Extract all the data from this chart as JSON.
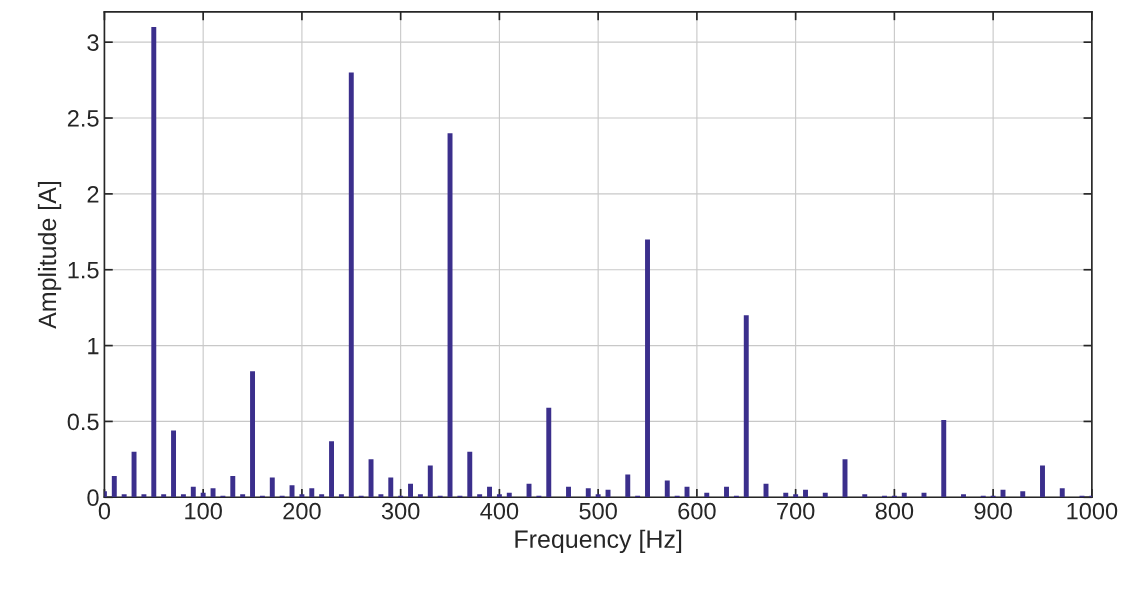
{
  "chart_data": {
    "type": "bar",
    "xlabel": "Frequency [Hz]",
    "ylabel": "Amplitude [A]",
    "color": "#3b2f8c",
    "x": [
      0,
      10,
      20,
      30,
      40,
      50,
      60,
      70,
      80,
      90,
      100,
      110,
      120,
      130,
      140,
      150,
      160,
      170,
      180,
      190,
      200,
      210,
      220,
      230,
      240,
      250,
      260,
      270,
      280,
      290,
      300,
      310,
      320,
      330,
      340,
      350,
      360,
      370,
      380,
      390,
      400,
      410,
      420,
      430,
      440,
      450,
      460,
      470,
      480,
      490,
      500,
      510,
      520,
      530,
      540,
      550,
      560,
      570,
      580,
      590,
      600,
      610,
      620,
      630,
      640,
      650,
      660,
      670,
      680,
      690,
      700,
      710,
      720,
      730,
      740,
      750,
      760,
      770,
      780,
      790,
      800,
      810,
      820,
      830,
      840,
      850,
      860,
      870,
      880,
      890,
      900,
      910,
      920,
      930,
      940,
      950,
      960,
      970,
      980,
      990,
      1000
    ],
    "values": [
      0.04,
      0.14,
      0.02,
      0.3,
      0.02,
      3.1,
      0.02,
      0.44,
      0.02,
      0.07,
      0.03,
      0.06,
      0.01,
      0.14,
      0.02,
      0.83,
      0.01,
      0.13,
      0.01,
      0.08,
      0.02,
      0.06,
      0.02,
      0.37,
      0.02,
      2.8,
      0.01,
      0.25,
      0.02,
      0.13,
      0.01,
      0.09,
      0.02,
      0.21,
      0.01,
      2.4,
      0.01,
      0.3,
      0.02,
      0.07,
      0.02,
      0.03,
      0,
      0.09,
      0.01,
      0.59,
      0,
      0.07,
      0,
      0.06,
      0.02,
      0.05,
      0,
      0.15,
      0.01,
      1.7,
      0,
      0.11,
      0.01,
      0.07,
      0,
      0.03,
      0,
      0.07,
      0.01,
      1.2,
      0,
      0.09,
      0,
      0.03,
      0.02,
      0.05,
      0,
      0.03,
      0,
      0.25,
      0,
      0.02,
      0,
      0.01,
      0.01,
      0.03,
      0,
      0.03,
      0,
      0.51,
      0,
      0.02,
      0,
      0.01,
      0.01,
      0.05,
      0,
      0.04,
      0,
      0.21,
      0,
      0.06,
      0,
      0.01,
      0.01
    ],
    "xlim": [
      0,
      1000
    ],
    "ylim": [
      0,
      3.2
    ],
    "xticks": [
      0,
      100,
      200,
      300,
      400,
      500,
      600,
      700,
      800,
      900,
      1000
    ],
    "yticks": [
      0,
      0.5,
      1,
      1.5,
      2,
      2.5,
      3
    ],
    "grid": true
  }
}
